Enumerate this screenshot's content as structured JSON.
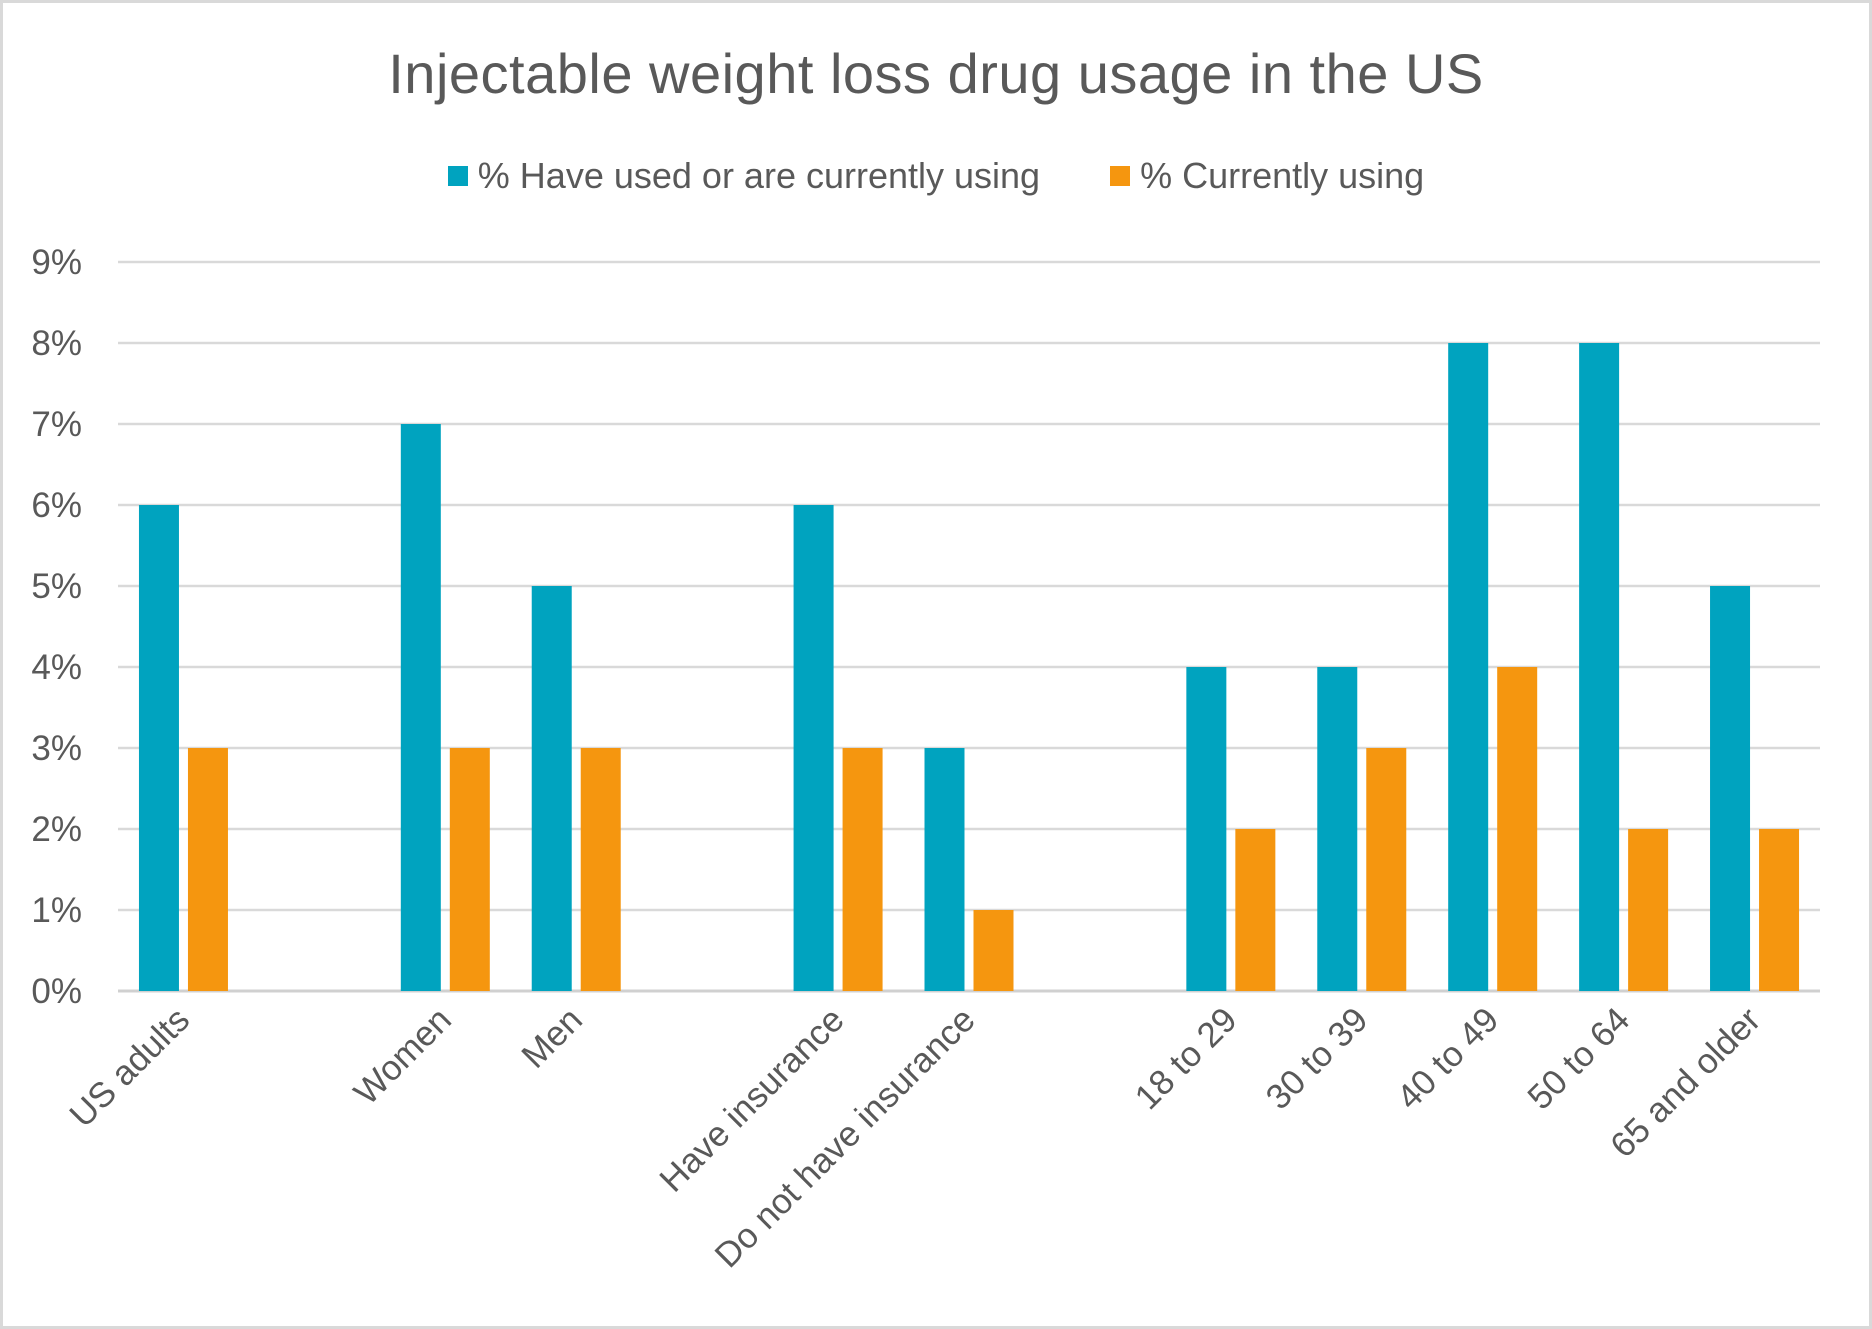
{
  "chart_data": {
    "type": "bar",
    "title": "Injectable weight loss drug usage in the US",
    "categories": [
      "US adults",
      "",
      "Women",
      "Men",
      "",
      "Have insurance",
      "Do not have insurance",
      "",
      "18 to 29",
      "30 to 39",
      "40 to 49",
      "50 to 64",
      "65 and older"
    ],
    "series": [
      {
        "name": "% Have used or are currently using",
        "color": "#00A3BF",
        "values": [
          6,
          null,
          7,
          5,
          null,
          6,
          3,
          null,
          4,
          4,
          8,
          8,
          5
        ]
      },
      {
        "name": "% Currently using",
        "color": "#F5960F",
        "values": [
          3,
          null,
          3,
          3,
          null,
          3,
          1,
          null,
          2,
          3,
          4,
          2,
          2
        ]
      }
    ],
    "y_ticks": [
      "0%",
      "1%",
      "2%",
      "3%",
      "4%",
      "5%",
      "6%",
      "7%",
      "8%",
      "9%"
    ],
    "ylim": [
      0,
      9
    ],
    "grid": true,
    "legend_position": "top",
    "xlabel": "",
    "ylabel": ""
  }
}
